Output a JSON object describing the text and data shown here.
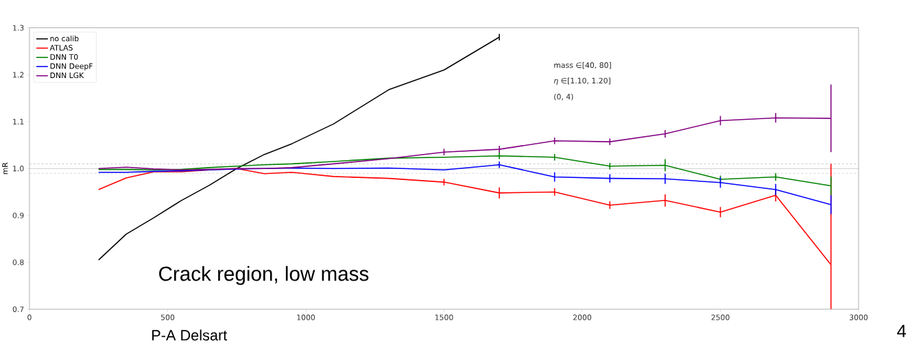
{
  "chart_data": {
    "type": "line",
    "ylabel": "mR",
    "x": [
      250,
      350,
      450,
      550,
      650,
      750,
      850,
      950,
      1100,
      1300,
      1500,
      1700,
      1900,
      2100,
      2300,
      2500,
      2700,
      2900
    ],
    "xlim": [
      0,
      3000
    ],
    "ylim": [
      0.7,
      1.3
    ],
    "xticks": [
      0,
      500,
      1000,
      1500,
      2000,
      2500,
      3000
    ],
    "yticks": [
      0.7,
      0.8,
      0.9,
      {
        "value": 1.0,
        "label": "1.0"
      },
      1.1,
      1.2,
      1.3
    ],
    "legend": "top left",
    "marker": "none",
    "line_style": "solid",
    "grid": false,
    "ref_lines": [
      {
        "axis": "y",
        "value": 1.0,
        "color": "#808080",
        "line_style": "solid"
      },
      {
        "axis": "y",
        "value": 0.99,
        "color": "#808080",
        "line_style": "dashed"
      },
      {
        "axis": "y",
        "value": 1.01,
        "color": "#808080",
        "line_style": "dashed"
      }
    ],
    "series": [
      {
        "name": "no calib",
        "color": "#000000",
        "values": [
          0.805,
          0.86,
          0.895,
          0.932,
          0.964,
          1.0,
          1.03,
          1.053,
          1.095,
          1.168,
          1.21,
          1.28,
          null,
          null,
          null,
          null,
          null,
          null
        ],
        "errors": [
          null,
          null,
          null,
          null,
          null,
          null,
          null,
          null,
          null,
          null,
          null,
          0.007,
          null,
          null,
          null,
          null,
          null,
          null
        ]
      },
      {
        "name": "ATLAS",
        "color": "#ff0000",
        "values": [
          0.955,
          0.98,
          0.993,
          0.993,
          0.997,
          1.0,
          0.989,
          0.992,
          0.983,
          0.979,
          0.971,
          0.948,
          0.95,
          0.922,
          0.932,
          0.907,
          0.943,
          0.795
        ],
        "errors": [
          null,
          null,
          null,
          null,
          null,
          null,
          null,
          null,
          null,
          null,
          0.007,
          0.012,
          0.008,
          0.008,
          0.013,
          0.011,
          0.013,
          [
            0.7,
            1.01
          ]
        ]
      },
      {
        "name": "DNN T0",
        "color": "#008000",
        "values": [
          0.998,
          0.998,
          0.997,
          0.998,
          1.002,
          1.005,
          1.008,
          1.01,
          1.015,
          1.022,
          1.024,
          1.027,
          1.024,
          1.005,
          1.007,
          0.977,
          0.982,
          0.963
        ],
        "errors": [
          null,
          null,
          null,
          null,
          null,
          null,
          null,
          null,
          null,
          null,
          null,
          0.007,
          0.007,
          0.007,
          0.013,
          0.008,
          0.008,
          0.02
        ]
      },
      {
        "name": "DNN DeepF",
        "color": "#0000ff",
        "values": [
          0.992,
          0.992,
          0.994,
          0.995,
          0.997,
          0.999,
          1.0,
          1.001,
          1.0,
          1.001,
          0.997,
          1.008,
          0.982,
          0.979,
          0.978,
          0.97,
          0.955,
          0.923
        ],
        "errors": [
          null,
          null,
          null,
          null,
          null,
          null,
          null,
          null,
          null,
          null,
          null,
          0.007,
          0.01,
          0.009,
          0.011,
          0.011,
          0.012,
          0.02
        ]
      },
      {
        "name": "DNN LGK",
        "color": "#800080",
        "values": [
          1.0,
          1.003,
          0.999,
          0.997,
          0.998,
          1.0,
          1.0,
          1.002,
          1.01,
          1.021,
          1.035,
          1.041,
          1.059,
          1.057,
          1.074,
          1.102,
          1.108,
          1.107
        ],
        "errors": [
          null,
          null,
          null,
          null,
          null,
          null,
          null,
          null,
          null,
          null,
          0.007,
          0.007,
          0.007,
          0.007,
          0.008,
          0.01,
          0.01,
          0.072
        ]
      }
    ],
    "annotations": [
      "mass ∈[40, 80]",
      "*η* ∈[1.10, 1.20]",
      "(0, 4)",
      "Crack region, low mass",
      "P-A Delsart",
      "4"
    ]
  }
}
